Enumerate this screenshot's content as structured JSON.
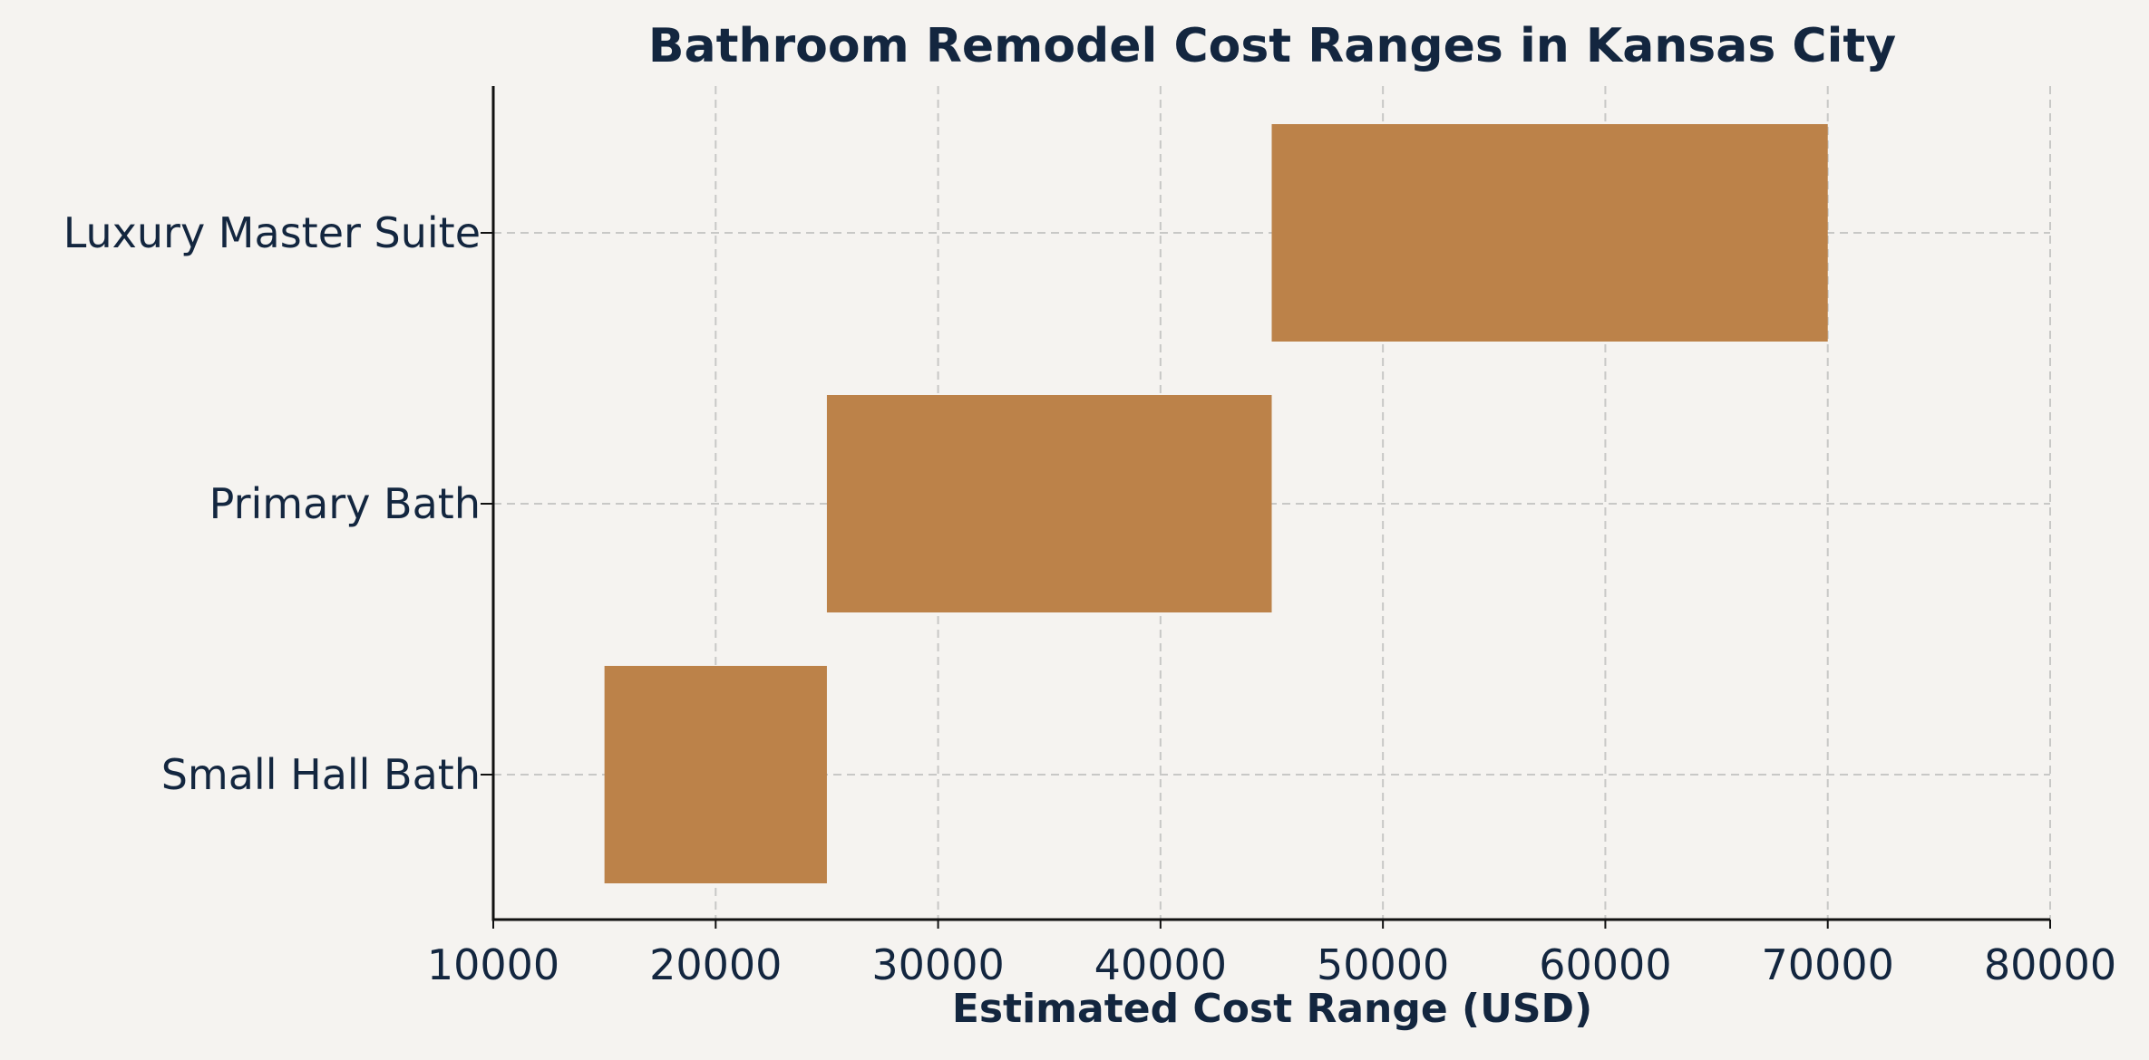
{
  "chart_data": {
    "type": "bar",
    "orientation": "horizontal",
    "title": "Bathroom Remodel Cost Ranges in Kansas City",
    "xlabel": "Estimated Cost Range (USD)",
    "ylabel": "",
    "xlim": [
      10000,
      80000
    ],
    "xticks": [
      "10000",
      "20000",
      "30000",
      "40000",
      "50000",
      "60000",
      "70000",
      "80000"
    ],
    "grid": true,
    "categories": [
      "Small Hall Bath",
      "Primary Bath",
      "Luxury Master Suite"
    ],
    "ranges": [
      {
        "category": "Small Hall Bath",
        "low": 15000,
        "high": 25000
      },
      {
        "category": "Primary Bath",
        "low": 25000,
        "high": 45000
      },
      {
        "category": "Luxury Master Suite",
        "low": 45000,
        "high": 70000
      }
    ],
    "colors": {
      "bar": "#bc8249",
      "background": "#f5f3f0",
      "text": "#13263f",
      "grid": "#c8c8c6",
      "axis": "#111111"
    }
  }
}
